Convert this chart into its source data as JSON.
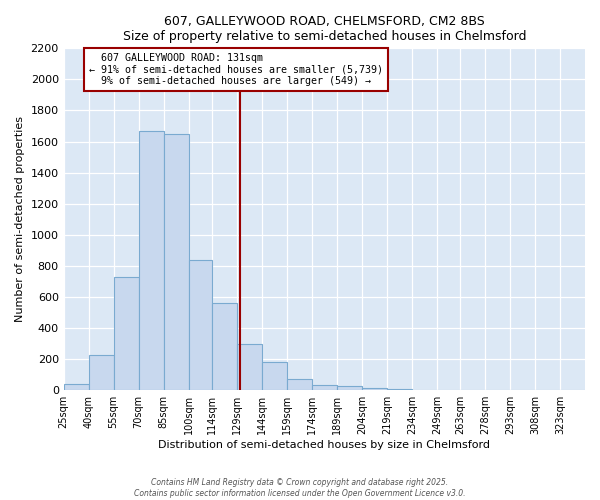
{
  "title": "607, GALLEYWOOD ROAD, CHELMSFORD, CM2 8BS",
  "subtitle": "Size of property relative to semi-detached houses in Chelmsford",
  "xlabel": "Distribution of semi-detached houses by size in Chelmsford",
  "ylabel": "Number of semi-detached properties",
  "bin_labels": [
    "25sqm",
    "40sqm",
    "55sqm",
    "70sqm",
    "85sqm",
    "100sqm",
    "114sqm",
    "129sqm",
    "144sqm",
    "159sqm",
    "174sqm",
    "189sqm",
    "204sqm",
    "219sqm",
    "234sqm",
    "249sqm",
    "263sqm",
    "278sqm",
    "293sqm",
    "308sqm",
    "323sqm"
  ],
  "bin_edges": [
    25,
    40,
    55,
    70,
    85,
    100,
    114,
    129,
    144,
    159,
    174,
    189,
    204,
    219,
    234,
    249,
    263,
    278,
    293,
    308,
    323,
    338
  ],
  "counts": [
    40,
    225,
    730,
    1670,
    1650,
    840,
    560,
    300,
    180,
    75,
    35,
    25,
    15,
    10,
    0,
    0,
    0,
    0,
    0,
    0,
    0
  ],
  "property_size": 131,
  "property_label": "607 GALLEYWOOD ROAD: 131sqm",
  "pct_smaller": 91,
  "count_smaller": 5739,
  "pct_larger": 9,
  "count_larger": 549,
  "bar_facecolor": "#c8d8ee",
  "bar_edgecolor": "#7aaad0",
  "vline_color": "#990000",
  "annot_edge_color": "#990000",
  "annot_fill_color": "white",
  "grid_color": "white",
  "plot_bg_color": "#dce8f5",
  "fig_bg_color": "white",
  "ylim": [
    0,
    2200
  ],
  "yticks": [
    0,
    200,
    400,
    600,
    800,
    1000,
    1200,
    1400,
    1600,
    1800,
    2000,
    2200
  ],
  "footer_line1": "Contains HM Land Registry data © Crown copyright and database right 2025.",
  "footer_line2": "Contains public sector information licensed under the Open Government Licence v3.0."
}
